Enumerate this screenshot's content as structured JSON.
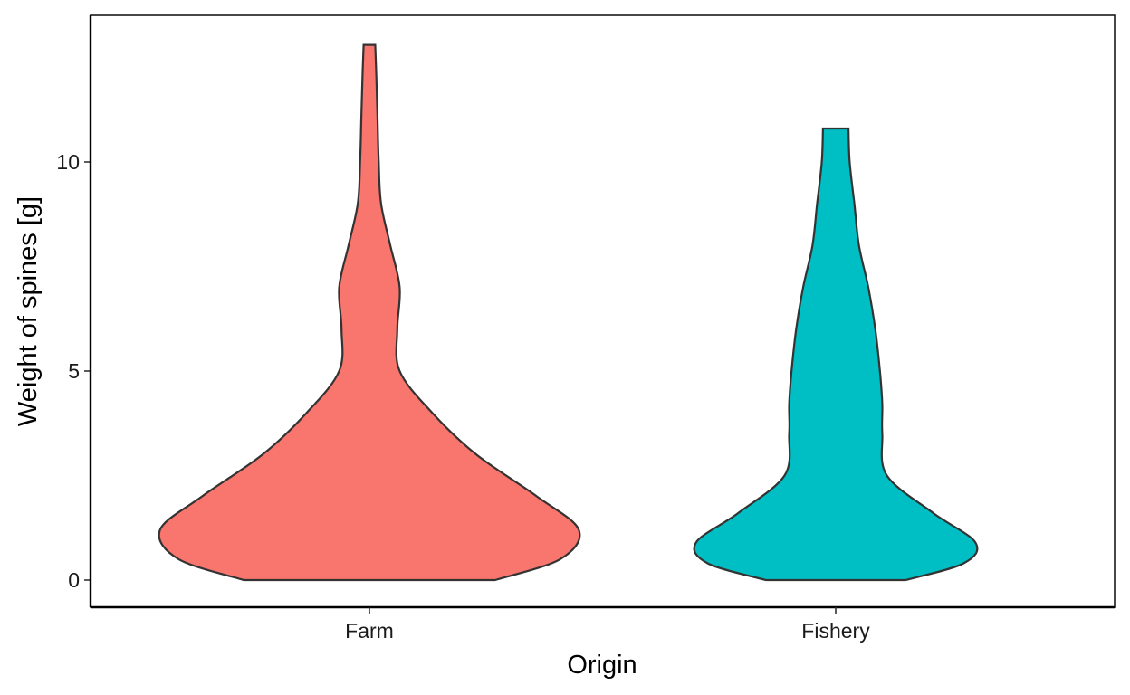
{
  "chart_data": {
    "type": "violin",
    "title": "",
    "xlabel": "Origin",
    "ylabel": "Weight of spines  [g]",
    "categories": [
      "Farm",
      "Fishery"
    ],
    "ylim": [
      -0.5,
      13.5
    ],
    "yticks": [
      0,
      5,
      10
    ],
    "ytick_labels": [
      "0",
      "5",
      "10"
    ],
    "grid": false,
    "legend": "none",
    "series": [
      {
        "category": "Farm",
        "color": "#F8766D",
        "y_min": 0,
        "y_max": 12.8,
        "density_profile": [
          {
            "y": 0.0,
            "half_width": 0.54
          },
          {
            "y": 0.5,
            "half_width": 0.82
          },
          {
            "y": 1.2,
            "half_width": 0.9
          },
          {
            "y": 2.0,
            "half_width": 0.72
          },
          {
            "y": 3.0,
            "half_width": 0.46
          },
          {
            "y": 4.0,
            "half_width": 0.27
          },
          {
            "y": 5.0,
            "half_width": 0.13
          },
          {
            "y": 6.0,
            "half_width": 0.12
          },
          {
            "y": 7.0,
            "half_width": 0.13
          },
          {
            "y": 8.0,
            "half_width": 0.09
          },
          {
            "y": 9.0,
            "half_width": 0.05
          },
          {
            "y": 10.0,
            "half_width": 0.04
          },
          {
            "y": 11.0,
            "half_width": 0.035
          },
          {
            "y": 12.0,
            "half_width": 0.03
          },
          {
            "y": 12.8,
            "half_width": 0.025
          }
        ]
      },
      {
        "category": "Fishery",
        "color": "#00BFC4",
        "y_min": 0,
        "y_max": 10.8,
        "density_profile": [
          {
            "y": 0.0,
            "half_width": 0.3
          },
          {
            "y": 0.4,
            "half_width": 0.55
          },
          {
            "y": 0.9,
            "half_width": 0.6
          },
          {
            "y": 1.6,
            "half_width": 0.42
          },
          {
            "y": 2.5,
            "half_width": 0.22
          },
          {
            "y": 3.5,
            "half_width": 0.2
          },
          {
            "y": 4.2,
            "half_width": 0.2
          },
          {
            "y": 5.0,
            "half_width": 0.19
          },
          {
            "y": 6.0,
            "half_width": 0.17
          },
          {
            "y": 7.0,
            "half_width": 0.14
          },
          {
            "y": 8.0,
            "half_width": 0.1
          },
          {
            "y": 9.0,
            "half_width": 0.08
          },
          {
            "y": 10.0,
            "half_width": 0.06
          },
          {
            "y": 10.8,
            "half_width": 0.055
          }
        ]
      }
    ]
  }
}
